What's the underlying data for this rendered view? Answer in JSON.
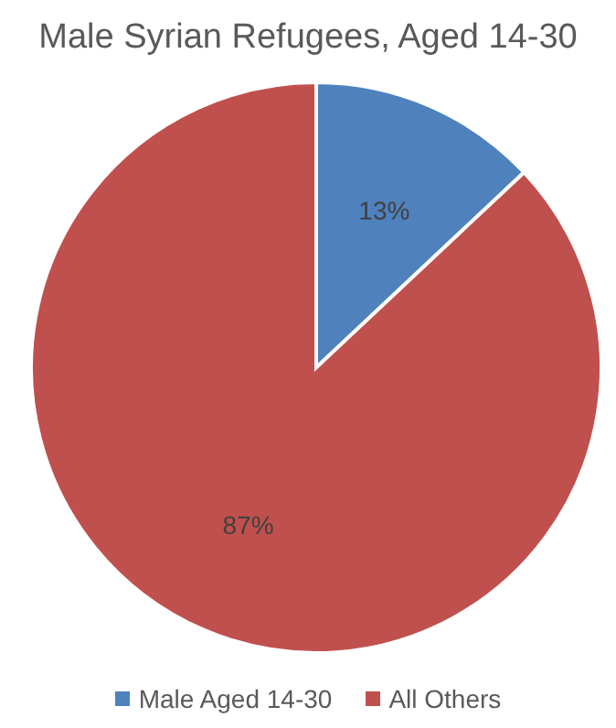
{
  "chart_data": {
    "type": "pie",
    "title": "Male Syrian Refugees, Aged 14-30",
    "categories": [
      "Male Aged 14-30",
      "All Others"
    ],
    "values": [
      13,
      87
    ],
    "colors": [
      "#4f81bd",
      "#c0504d"
    ],
    "value_labels": [
      "13%",
      "87%"
    ],
    "legend": "bottom"
  }
}
